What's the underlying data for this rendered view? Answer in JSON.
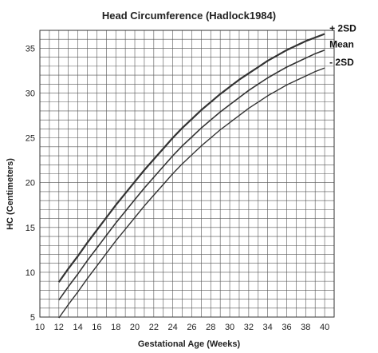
{
  "chart_data": {
    "type": "line",
    "title": "Head Circumference (Hadlock1984)",
    "xlabel": "Gestational Age (Weeks)",
    "ylabel": "HC (Centimeters)",
    "xlim": [
      10,
      41
    ],
    "ylim": [
      5,
      37
    ],
    "x_ticks": [
      10,
      12,
      14,
      16,
      18,
      20,
      22,
      24,
      26,
      28,
      30,
      32,
      34,
      36,
      38,
      40
    ],
    "y_ticks": [
      5,
      10,
      15,
      20,
      25,
      30,
      35
    ],
    "grid": true,
    "x": [
      12,
      13,
      14,
      15,
      16,
      17,
      18,
      19,
      20,
      21,
      22,
      23,
      24,
      25,
      26,
      27,
      28,
      29,
      30,
      31,
      32,
      33,
      34,
      35,
      36,
      37,
      38,
      39,
      40
    ],
    "series": [
      {
        "name": "+ 2SD",
        "color": "#333333",
        "values": [
          8.9,
          10.4,
          11.8,
          13.3,
          14.7,
          16.1,
          17.5,
          18.8,
          20.1,
          21.4,
          22.6,
          23.8,
          25.0,
          26.1,
          27.1,
          28.1,
          29.0,
          29.9,
          30.7,
          31.5,
          32.2,
          32.9,
          33.6,
          34.2,
          34.8,
          35.3,
          35.8,
          36.2,
          36.6
        ]
      },
      {
        "name": "Mean",
        "color": "#333333",
        "values": [
          6.9,
          8.4,
          9.8,
          11.3,
          12.7,
          14.1,
          15.5,
          16.8,
          18.1,
          19.4,
          20.6,
          21.8,
          23.0,
          24.1,
          25.1,
          26.1,
          27.0,
          27.9,
          28.7,
          29.5,
          30.3,
          31.0,
          31.7,
          32.3,
          32.9,
          33.4,
          33.9,
          34.4,
          34.8
        ]
      },
      {
        "name": "- 2SD",
        "color": "#333333",
        "values": [
          4.9,
          6.4,
          7.8,
          9.3,
          10.7,
          12.1,
          13.5,
          14.8,
          16.1,
          17.4,
          18.6,
          19.8,
          21.0,
          22.1,
          23.1,
          24.1,
          25.0,
          25.9,
          26.7,
          27.5,
          28.3,
          29.0,
          29.7,
          30.3,
          30.9,
          31.4,
          31.9,
          32.4,
          32.8
        ]
      }
    ]
  }
}
